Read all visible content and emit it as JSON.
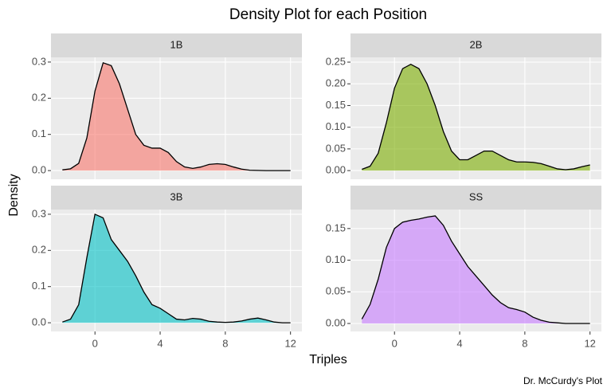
{
  "title": "Density Plot for each Position",
  "xlabel": "Triples",
  "ylabel": "Density",
  "caption": "Dr. McCurdy's Plot",
  "chart_data": [
    {
      "type": "area",
      "title": "1B",
      "color": "#F8766D",
      "x": [
        -2,
        -1.5,
        -1,
        -0.5,
        0,
        0.5,
        1,
        1.5,
        2,
        2.5,
        3,
        3.5,
        4,
        4.5,
        5,
        5.5,
        6,
        6.5,
        7,
        7.5,
        8,
        8.5,
        9,
        9.5,
        10,
        10.5,
        11,
        11.5,
        12
      ],
      "values": [
        0.002,
        0.005,
        0.02,
        0.09,
        0.22,
        0.298,
        0.29,
        0.24,
        0.17,
        0.1,
        0.07,
        0.062,
        0.062,
        0.05,
        0.025,
        0.01,
        0.006,
        0.01,
        0.017,
        0.019,
        0.017,
        0.01,
        0.004,
        0.001,
        0.0005,
        0,
        0,
        0,
        0
      ],
      "xlim": [
        -2.7,
        12.7
      ],
      "xticks": [
        0,
        4,
        8,
        12
      ],
      "ylim": [
        -0.024,
        0.313
      ],
      "yticks": [
        {
          "value": 0,
          "label": "0.0"
        },
        0.1,
        0.2,
        0.3
      ],
      "grid": true
    },
    {
      "type": "area",
      "title": "2B",
      "color": "#7CAE00",
      "x": [
        -2,
        -1.5,
        -1,
        -0.5,
        0,
        0.5,
        1,
        1.5,
        2,
        2.5,
        3,
        3.5,
        4,
        4.5,
        5,
        5.5,
        6,
        6.5,
        7,
        7.5,
        8,
        8.5,
        9,
        9.5,
        10,
        10.5,
        11,
        11.5,
        12
      ],
      "values": [
        0.003,
        0.01,
        0.04,
        0.11,
        0.19,
        0.235,
        0.245,
        0.235,
        0.2,
        0.15,
        0.09,
        0.045,
        0.025,
        0.025,
        0.035,
        0.045,
        0.045,
        0.035,
        0.025,
        0.02,
        0.02,
        0.019,
        0.016,
        0.01,
        0.004,
        0.002,
        0.004,
        0.009,
        0.013
      ],
      "xlim": [
        -2.7,
        12.7
      ],
      "xticks": [
        0,
        4,
        8,
        12
      ],
      "ylim": [
        -0.02,
        0.261
      ],
      "yticks": [
        {
          "value": 0,
          "label": "0.00"
        },
        0.05,
        {
          "value": 0.1,
          "label": "0.10"
        },
        0.15,
        {
          "value": 0.2,
          "label": "0.20"
        },
        0.25
      ],
      "grid": true
    },
    {
      "type": "area",
      "title": "3B",
      "color": "#00BFC4",
      "x": [
        -2,
        -1.5,
        -1,
        -0.5,
        0,
        0.5,
        1,
        1.5,
        2,
        2.5,
        3,
        3.5,
        4,
        4.5,
        5,
        5.5,
        6,
        6.5,
        7,
        7.5,
        8,
        8.5,
        9,
        9.5,
        10,
        10.5,
        11,
        11.5,
        12
      ],
      "values": [
        0.002,
        0.01,
        0.05,
        0.18,
        0.3,
        0.29,
        0.23,
        0.2,
        0.17,
        0.13,
        0.085,
        0.05,
        0.04,
        0.025,
        0.01,
        0.008,
        0.012,
        0.01,
        0.004,
        0.002,
        0.001,
        0.002,
        0.005,
        0.01,
        0.013,
        0.008,
        0.002,
        0,
        0
      ],
      "xlim": [
        -2.7,
        12.7
      ],
      "xticks": [
        0,
        4,
        8,
        12
      ],
      "ylim": [
        -0.024,
        0.313
      ],
      "yticks": [
        {
          "value": 0,
          "label": "0.0"
        },
        0.1,
        0.2,
        0.3
      ],
      "grid": true
    },
    {
      "type": "area",
      "title": "SS",
      "color": "#C77CFF",
      "x": [
        -2,
        -1.5,
        -1,
        -0.5,
        0,
        0.5,
        1,
        1.5,
        2,
        2.5,
        3,
        3.5,
        4,
        4.5,
        5,
        5.5,
        6,
        6.5,
        7,
        7.5,
        8,
        8.5,
        9,
        9.5,
        10,
        10.5,
        11,
        11.5,
        12
      ],
      "values": [
        0.007,
        0.03,
        0.07,
        0.12,
        0.15,
        0.16,
        0.163,
        0.165,
        0.168,
        0.17,
        0.155,
        0.13,
        0.11,
        0.09,
        0.075,
        0.06,
        0.045,
        0.033,
        0.025,
        0.022,
        0.018,
        0.01,
        0.005,
        0.002,
        0.001,
        0,
        0,
        0,
        0
      ],
      "xlim": [
        -2.7,
        12.7
      ],
      "xticks": [
        0,
        4,
        8,
        12
      ],
      "ylim": [
        -0.0126,
        0.18
      ],
      "yticks": [
        {
          "value": 0,
          "label": "0.00"
        },
        0.05,
        {
          "value": 0.1,
          "label": "0.10"
        },
        0.15
      ],
      "grid": true
    }
  ]
}
